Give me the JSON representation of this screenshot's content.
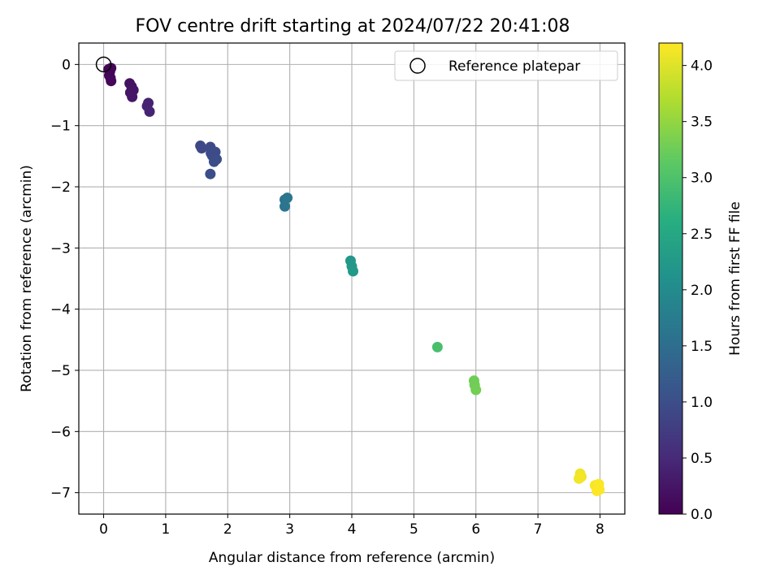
{
  "chart_data": {
    "type": "scatter",
    "title": "FOV centre drift starting at 2024/07/22 20:41:08",
    "xlabel": "Angular distance from reference (arcmin)",
    "ylabel": "Rotation from reference (arcmin)",
    "xlim": [
      -0.4,
      8.4
    ],
    "ylim": [
      -7.35,
      0.35
    ],
    "xticks": [
      0,
      1,
      2,
      3,
      4,
      5,
      6,
      7,
      8
    ],
    "yticks": [
      0,
      -1,
      -2,
      -3,
      -4,
      -5,
      -6,
      -7
    ],
    "grid": true,
    "legend": {
      "position": "top-right",
      "entries": [
        "Reference platepar"
      ]
    },
    "reference_point": {
      "x": 0,
      "y": 0,
      "label": "Reference platepar"
    },
    "colorbar": {
      "label": "Hours from first FF file",
      "range": [
        0.0,
        4.2
      ],
      "ticks": [
        "0.0",
        "0.5",
        "1.0",
        "1.5",
        "2.0",
        "2.5",
        "3.0",
        "3.5",
        "4.0"
      ],
      "colormap": "viridis"
    },
    "points": [
      {
        "x": 0.08,
        "y": -0.08,
        "c": 0.0
      },
      {
        "x": 0.1,
        "y": -0.12,
        "c": 0.02
      },
      {
        "x": 0.12,
        "y": -0.06,
        "c": 0.04
      },
      {
        "x": 0.09,
        "y": -0.18,
        "c": 0.05
      },
      {
        "x": 0.11,
        "y": -0.22,
        "c": 0.06
      },
      {
        "x": 0.12,
        "y": -0.27,
        "c": 0.08
      },
      {
        "x": 0.42,
        "y": -0.31,
        "c": 0.2
      },
      {
        "x": 0.45,
        "y": -0.36,
        "c": 0.22
      },
      {
        "x": 0.48,
        "y": -0.42,
        "c": 0.24
      },
      {
        "x": 0.43,
        "y": -0.46,
        "c": 0.25
      },
      {
        "x": 0.46,
        "y": -0.53,
        "c": 0.27
      },
      {
        "x": 0.72,
        "y": -0.63,
        "c": 0.4
      },
      {
        "x": 0.7,
        "y": -0.68,
        "c": 0.41
      },
      {
        "x": 0.74,
        "y": -0.77,
        "c": 0.43
      },
      {
        "x": 1.56,
        "y": -1.33,
        "c": 0.9
      },
      {
        "x": 1.58,
        "y": -1.37,
        "c": 0.91
      },
      {
        "x": 1.72,
        "y": -1.35,
        "c": 0.94
      },
      {
        "x": 1.73,
        "y": -1.45,
        "c": 0.95
      },
      {
        "x": 1.75,
        "y": -1.49,
        "c": 0.96
      },
      {
        "x": 1.8,
        "y": -1.43,
        "c": 0.97
      },
      {
        "x": 1.82,
        "y": -1.55,
        "c": 0.98
      },
      {
        "x": 1.78,
        "y": -1.59,
        "c": 0.99
      },
      {
        "x": 1.72,
        "y": -1.79,
        "c": 1.0
      },
      {
        "x": 2.92,
        "y": -2.21,
        "c": 1.6
      },
      {
        "x": 2.96,
        "y": -2.18,
        "c": 1.62
      },
      {
        "x": 2.92,
        "y": -2.32,
        "c": 1.64
      },
      {
        "x": 3.98,
        "y": -3.21,
        "c": 2.2
      },
      {
        "x": 4.0,
        "y": -3.3,
        "c": 2.22
      },
      {
        "x": 4.02,
        "y": -3.38,
        "c": 2.24
      },
      {
        "x": 5.38,
        "y": -4.62,
        "c": 2.95
      },
      {
        "x": 5.97,
        "y": -5.17,
        "c": 3.25
      },
      {
        "x": 5.98,
        "y": -5.24,
        "c": 3.27
      },
      {
        "x": 6.0,
        "y": -5.32,
        "c": 3.29
      },
      {
        "x": 7.68,
        "y": -6.69,
        "c": 4.1
      },
      {
        "x": 7.7,
        "y": -6.74,
        "c": 4.12
      },
      {
        "x": 7.66,
        "y": -6.77,
        "c": 4.13
      },
      {
        "x": 7.92,
        "y": -6.88,
        "c": 4.16
      },
      {
        "x": 7.98,
        "y": -6.86,
        "c": 4.18
      },
      {
        "x": 7.95,
        "y": -6.97,
        "c": 4.19
      },
      {
        "x": 7.99,
        "y": -6.95,
        "c": 4.2
      }
    ]
  }
}
